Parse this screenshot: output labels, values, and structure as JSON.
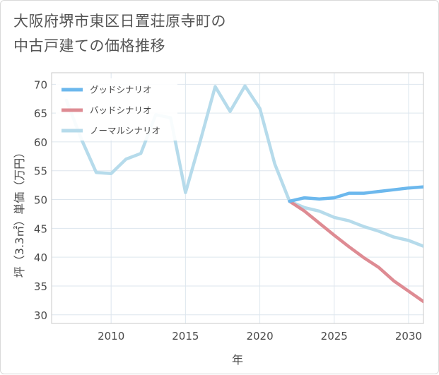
{
  "title": {
    "line1": "大阪府堺市東区日置荘原寺町の",
    "line2": "中古戸建ての価格推移"
  },
  "chart_data": {
    "type": "line",
    "xlabel": "年",
    "ylabel": "坪（3.3㎡）単価（万円）",
    "xlim": [
      2006.0,
      2031.0
    ],
    "ylim": [
      28.5,
      72.0
    ],
    "x_ticks": [
      2010,
      2015,
      2020,
      2025,
      2030
    ],
    "y_ticks": [
      30,
      35,
      40,
      45,
      50,
      55,
      60,
      65,
      70
    ],
    "grid": true,
    "legend_position": "top-left",
    "series": [
      {
        "name": "グッドシナリオ",
        "color": "#6cb8ed",
        "points": [
          [
            2022,
            49.7
          ],
          [
            2023,
            50.3
          ],
          [
            2024,
            50.1
          ],
          [
            2025,
            50.3
          ],
          [
            2026,
            51.1
          ],
          [
            2027,
            51.1
          ],
          [
            2028,
            51.4
          ],
          [
            2029,
            51.7
          ],
          [
            2030,
            52.0
          ],
          [
            2031,
            52.2
          ]
        ]
      },
      {
        "name": "バッドシナリオ",
        "color": "#de8b93",
        "points": [
          [
            2022,
            49.7
          ],
          [
            2023,
            48.0
          ],
          [
            2024,
            45.9
          ],
          [
            2025,
            43.8
          ],
          [
            2026,
            41.8
          ],
          [
            2027,
            39.9
          ],
          [
            2028,
            38.2
          ],
          [
            2029,
            35.9
          ],
          [
            2030,
            34.1
          ],
          [
            2031,
            32.3
          ]
        ]
      },
      {
        "name": "ノーマルシナリオ",
        "color": "#b6dbeb",
        "points": [
          [
            2007,
            67.2
          ],
          [
            2008,
            60.5
          ],
          [
            2009,
            54.7
          ],
          [
            2010,
            54.5
          ],
          [
            2011,
            57.0
          ],
          [
            2012,
            58.0
          ],
          [
            2013,
            64.7
          ],
          [
            2014,
            64.2
          ],
          [
            2015,
            51.2
          ],
          [
            2016,
            60.2
          ],
          [
            2017,
            69.6
          ],
          [
            2018,
            65.3
          ],
          [
            2019,
            69.7
          ],
          [
            2020,
            65.8
          ],
          [
            2021,
            56.2
          ],
          [
            2022,
            49.7
          ],
          [
            2023,
            48.6
          ],
          [
            2024,
            48.0
          ],
          [
            2025,
            46.9
          ],
          [
            2026,
            46.3
          ],
          [
            2027,
            45.3
          ],
          [
            2028,
            44.5
          ],
          [
            2029,
            43.5
          ],
          [
            2030,
            42.9
          ],
          [
            2031,
            41.9
          ]
        ]
      }
    ]
  }
}
